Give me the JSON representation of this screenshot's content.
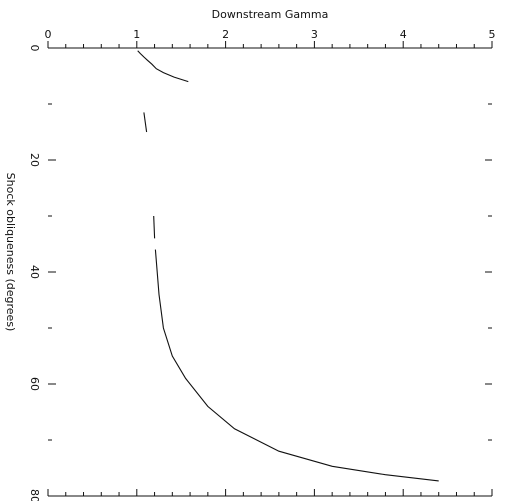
{
  "chart_data": {
    "type": "line",
    "xlabel": "Downstream Gamma",
    "ylabel": "Shock obliqueness (degrees)",
    "xlim": [
      0,
      5
    ],
    "ylim": [
      0,
      80
    ],
    "x_ticks": [
      "0",
      "1",
      "2",
      "3",
      "4",
      "5"
    ],
    "y_ticks": [
      "0",
      "20",
      "40",
      "60",
      "80"
    ],
    "grid": false,
    "series": [
      {
        "values": [
          {
            "x": 1.01,
            "y": 0.5
          },
          {
            "x": 1.04,
            "y": 1.0
          },
          {
            "x": 1.08,
            "y": 1.6
          },
          {
            "x": 1.12,
            "y": 2.2
          },
          {
            "x": 1.17,
            "y": 2.9
          },
          {
            "x": 1.22,
            "y": 3.7
          },
          {
            "x": 1.3,
            "y": 4.4
          },
          {
            "x": 1.42,
            "y": 5.2
          },
          {
            "x": 1.58,
            "y": 6.0
          }
        ]
      },
      {
        "values": [
          {
            "x": 1.08,
            "y": 11.5
          },
          {
            "x": 1.11,
            "y": 15.0
          }
        ]
      },
      {
        "values": [
          {
            "x": 1.19,
            "y": 30.0
          },
          {
            "x": 1.2,
            "y": 34.0
          }
        ]
      },
      {
        "values": [
          {
            "x": 1.21,
            "y": 36.0
          },
          {
            "x": 1.25,
            "y": 44.0
          },
          {
            "x": 1.3,
            "y": 50.0
          },
          {
            "x": 1.4,
            "y": 55.0
          },
          {
            "x": 1.55,
            "y": 59.0
          },
          {
            "x": 1.8,
            "y": 64.0
          },
          {
            "x": 2.1,
            "y": 68.0
          },
          {
            "x": 2.6,
            "y": 72.0
          },
          {
            "x": 3.2,
            "y": 74.7
          },
          {
            "x": 3.8,
            "y": 76.2
          },
          {
            "x": 4.4,
            "y": 77.3
          }
        ]
      }
    ]
  }
}
